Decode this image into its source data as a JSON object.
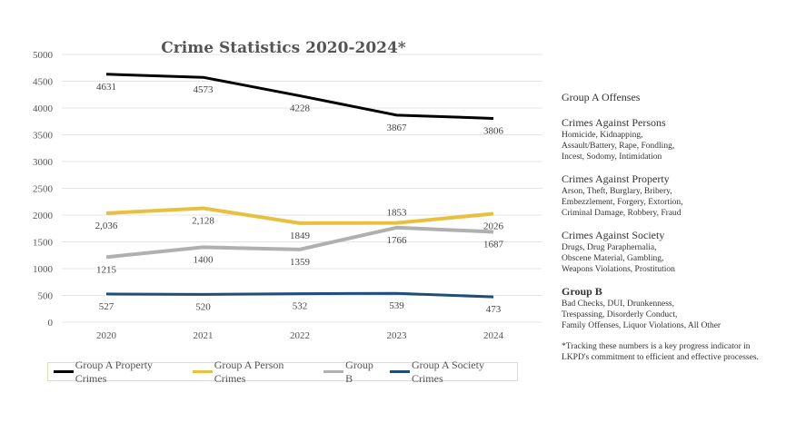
{
  "chart_data": {
    "type": "line",
    "title": "Crime Statistics 2020-2024*",
    "categories": [
      "2020",
      "2021",
      "2022",
      "2023",
      "2024"
    ],
    "ylim": [
      0,
      5000
    ],
    "yticks": [
      0,
      500,
      1000,
      1500,
      2000,
      2500,
      3000,
      3500,
      4000,
      4500,
      5000
    ],
    "grid": true,
    "legend_position": "bottom",
    "series": [
      {
        "name": "Group A Property Crimes",
        "color": "#000000",
        "values": [
          4631,
          4573,
          4228,
          3867,
          3806
        ],
        "labels": [
          "4631",
          "4573",
          "4228",
          "3867",
          "3806"
        ]
      },
      {
        "name": "Group A Person Crimes",
        "color": "#e8c040",
        "values": [
          2036,
          2128,
          1849,
          1853,
          2026
        ],
        "labels": [
          "2,036",
          "2,128",
          "1849",
          "1853",
          "2026"
        ]
      },
      {
        "name": "Group B",
        "color": "#b0b0b0",
        "values": [
          1215,
          1400,
          1359,
          1766,
          1687
        ],
        "labels": [
          "1215",
          "1400",
          "1359",
          "1766",
          "1687"
        ]
      },
      {
        "name": "Group A Society Crimes",
        "color": "#1f4e79",
        "values": [
          527,
          520,
          532,
          539,
          473
        ],
        "labels": [
          "527",
          "520",
          "532",
          "539",
          "473"
        ]
      }
    ]
  },
  "sidebar": {
    "heading": "Group A Offenses",
    "sections": [
      {
        "title": "Crimes Against Persons",
        "lines": [
          "Homicide, Kidnapping,",
          "Assault/Battery, Rape, Fondling,",
          "Incest, Sodomy, Intimidation"
        ]
      },
      {
        "title": "Crimes Against Property",
        "lines": [
          "Arson, Theft, Burglary, Bribery,",
          "Embezzlement, Forgery, Extortion,",
          "Criminal Damage, Robbery, Fraud"
        ]
      },
      {
        "title": "Crimes Against Society",
        "lines": [
          "Drugs, Drug Paraphernalia,",
          "Obscene Material, Gambling,",
          "Weapons Violations, Prostitution"
        ]
      },
      {
        "title": "Group B",
        "lines": [
          "Bad Checks, DUI, Drunkenness,",
          "Trespassing, Disorderly Conduct,",
          "Family Offenses, Liquor Violations, All Other"
        ]
      }
    ],
    "note": "*Tracking these numbers is a key progress indicator in LKPD's commitment to efficient and effective processes."
  }
}
